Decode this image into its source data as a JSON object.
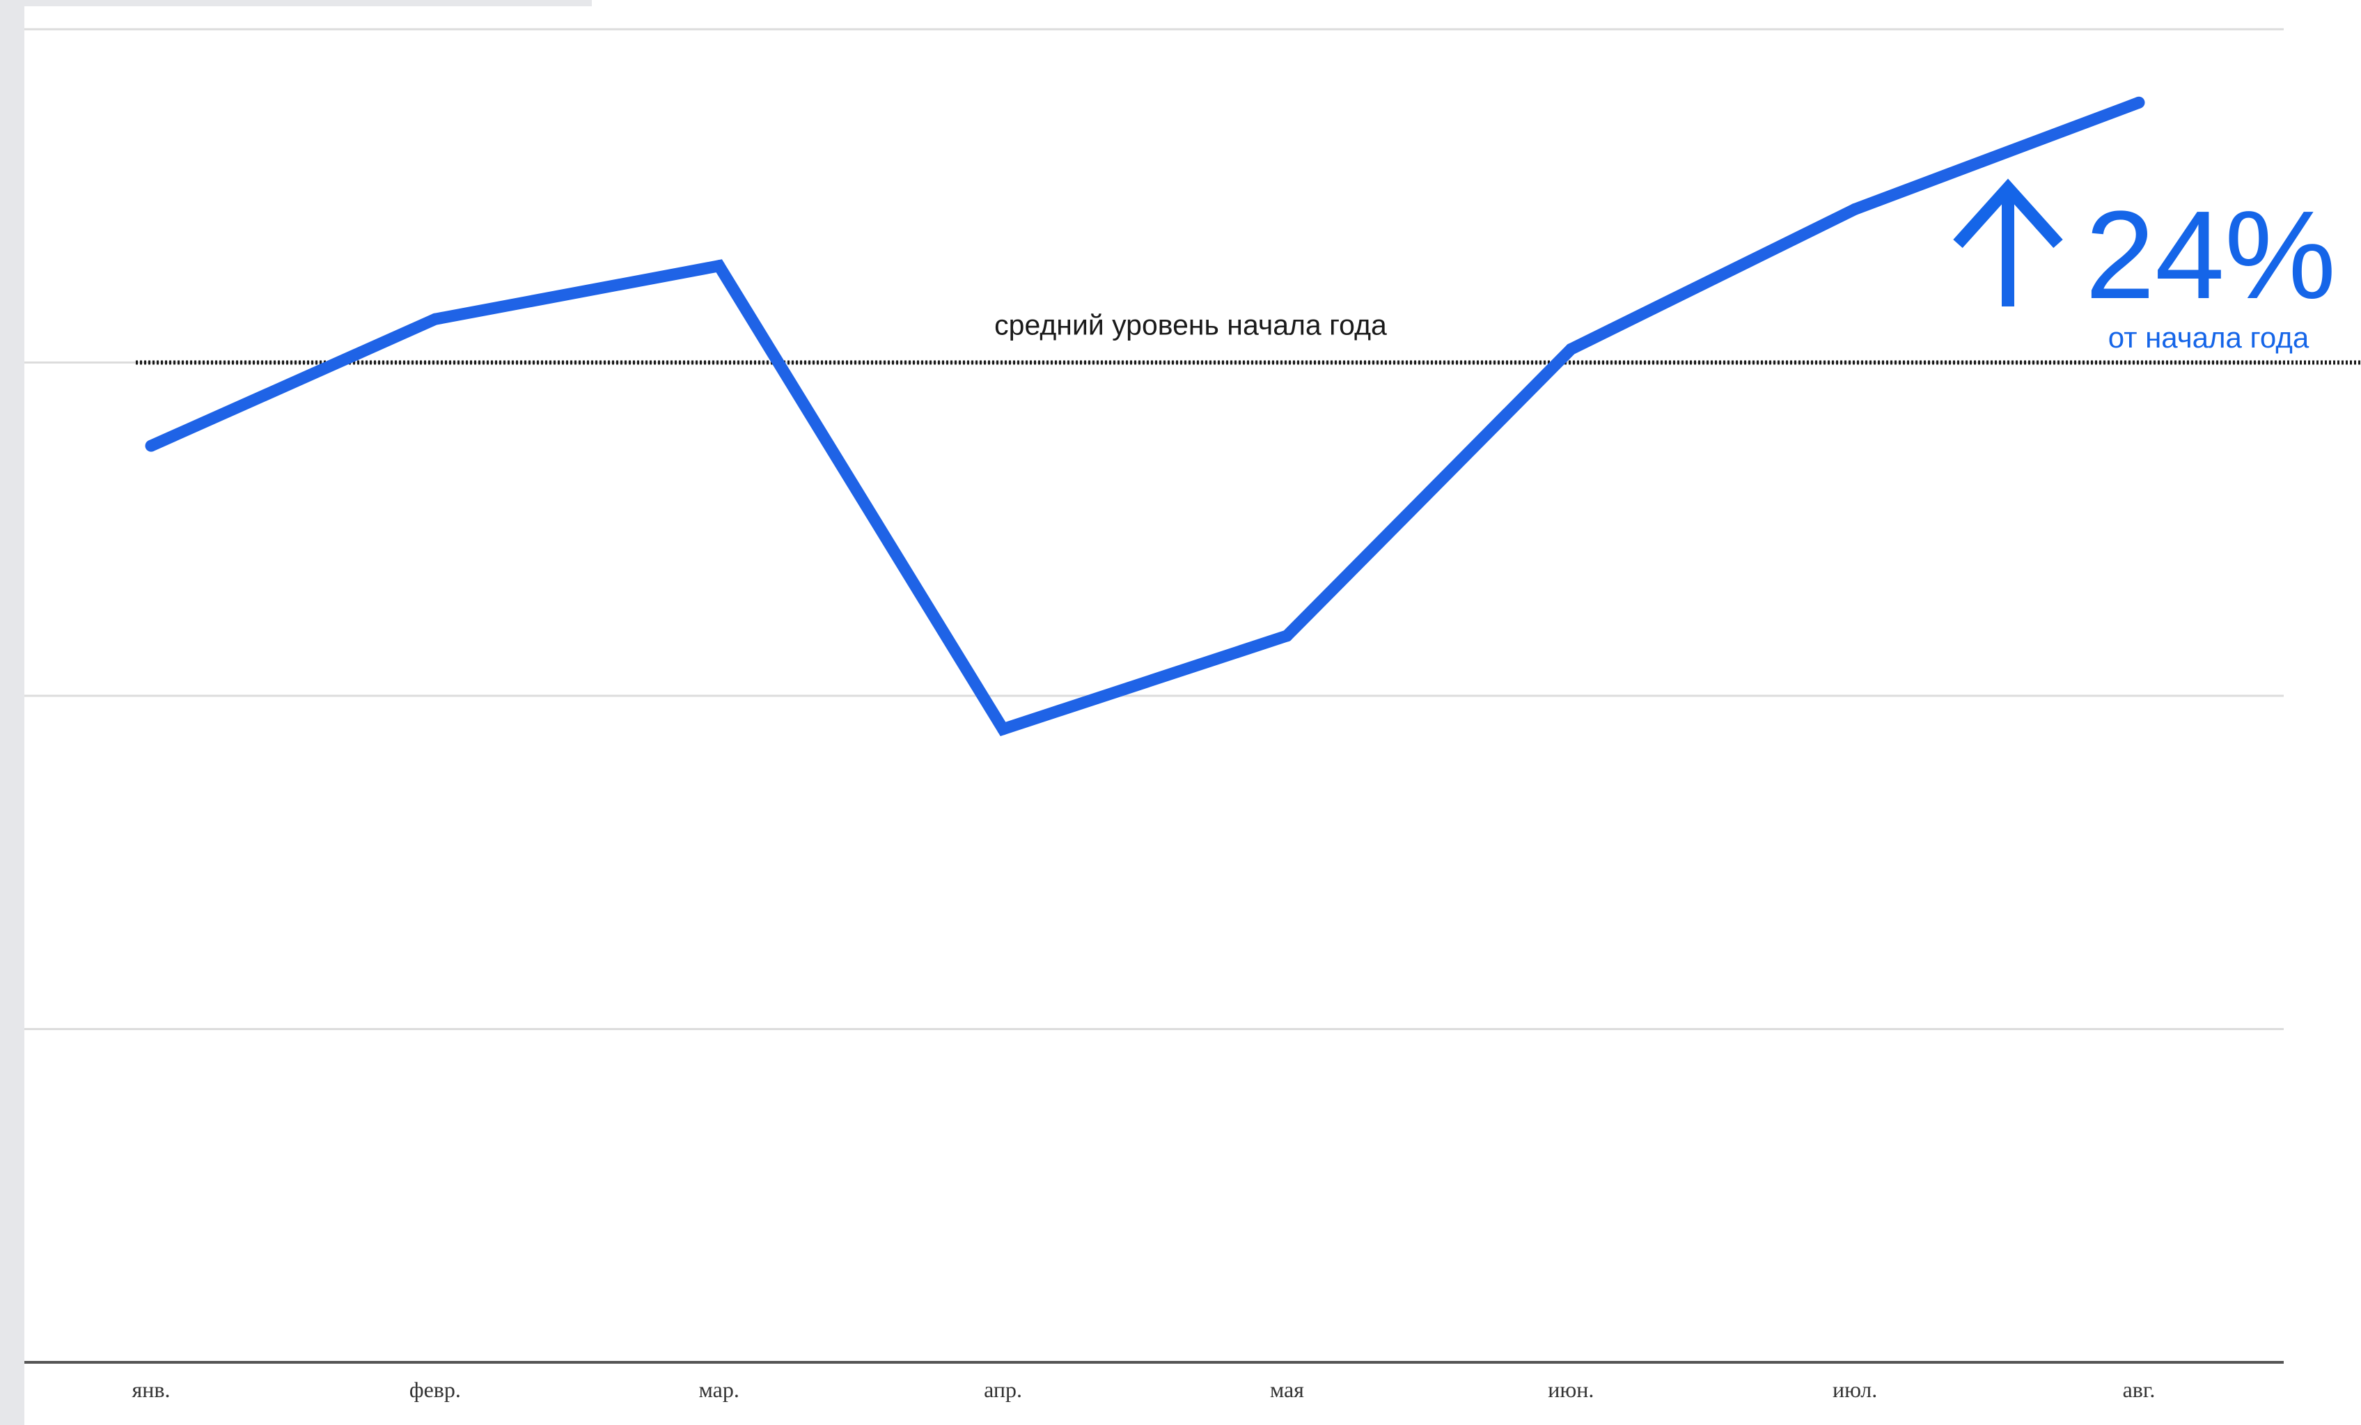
{
  "chart_data": {
    "type": "line",
    "title": "",
    "xlabel": "",
    "ylabel": "",
    "categories": [
      "янв.",
      "февр.",
      "мар.",
      "апр.",
      "мая",
      "июн.",
      "июл.",
      "авг."
    ],
    "series": [
      {
        "values": [
          -0.25,
          0.13,
          0.29,
          -1.1,
          -0.82,
          0.04,
          0.46,
          0.78
        ]
      }
    ],
    "ylim": [
      -3,
      1
    ],
    "grid": true,
    "y_tick_labels_shown": false,
    "reference_line": {
      "value": 0,
      "label": "средний уровень начала года",
      "style": "dotted"
    },
    "annotation": {
      "direction": "up",
      "value": "24%",
      "caption": "от начала года"
    },
    "colors": {
      "line": "#1f63e6",
      "annotation": "#1565e8",
      "grid": "#dcdcdc",
      "axis": "#555555"
    },
    "icons": {
      "annotation_arrow": "arrow-up-icon"
    }
  }
}
